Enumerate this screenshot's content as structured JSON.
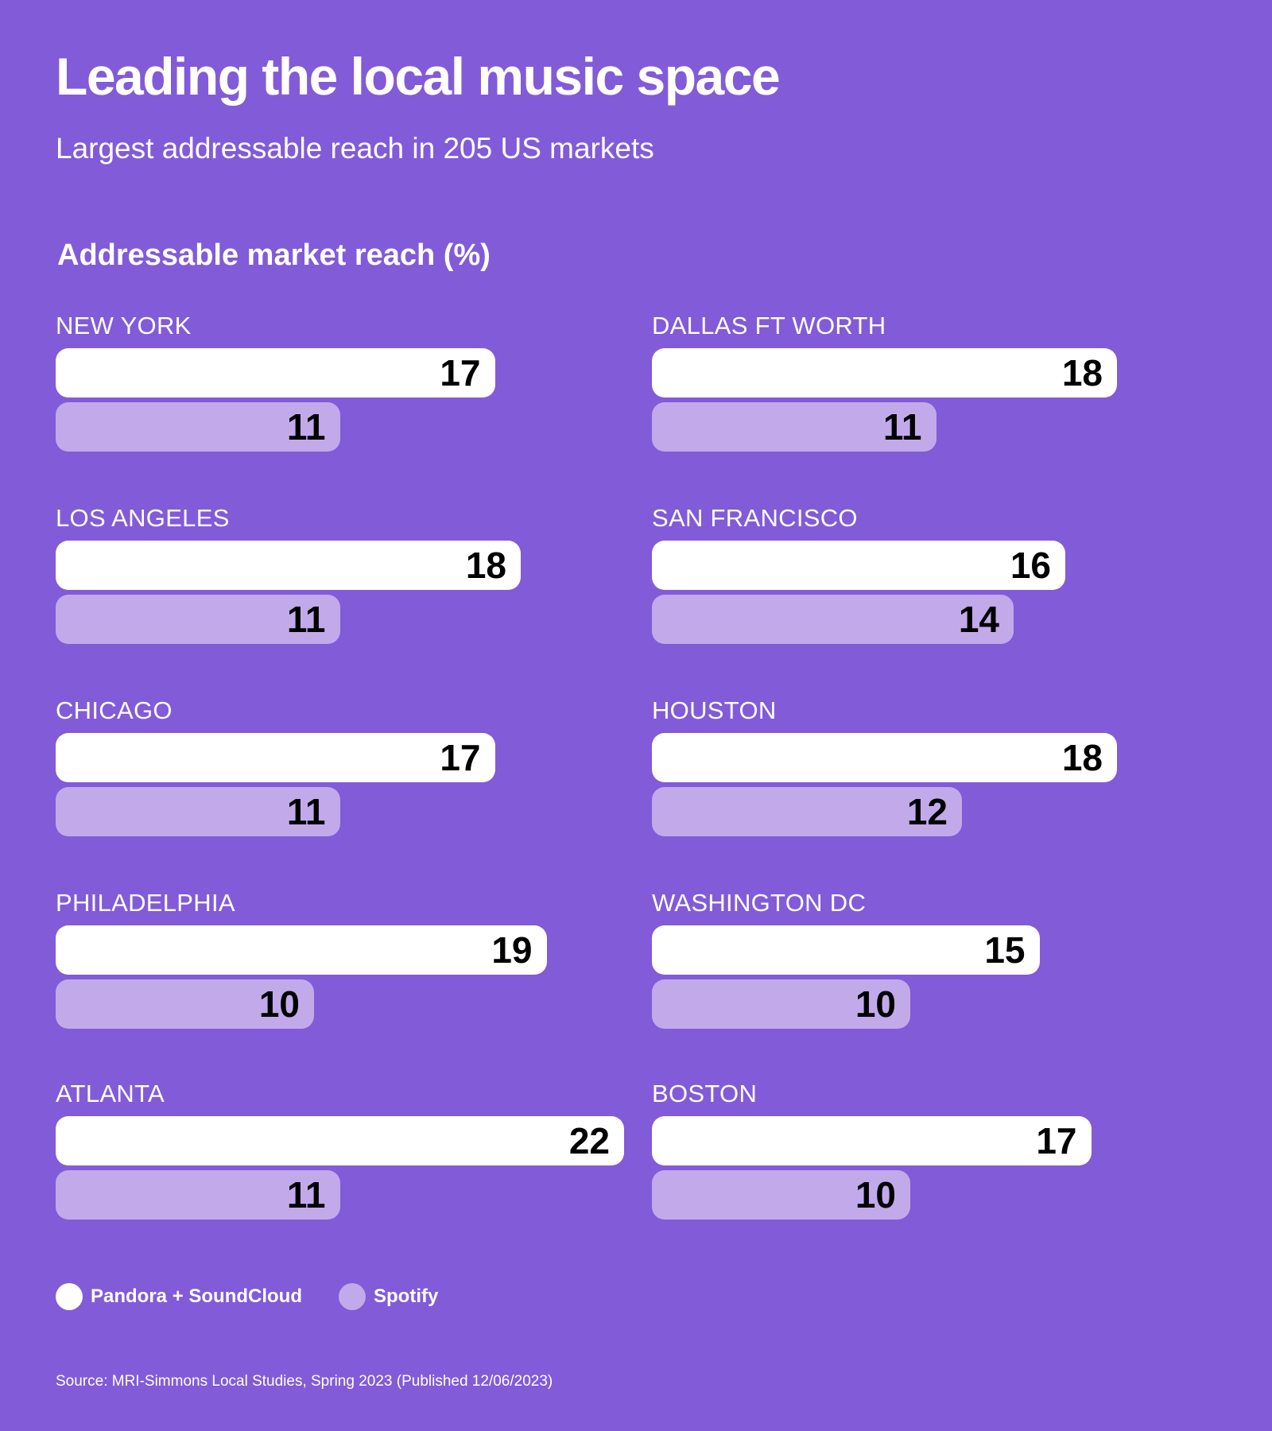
{
  "header": {
    "title": "Leading the local music space",
    "subtitle": "Largest addressable reach in 205 US markets"
  },
  "colors": {
    "background": "#825bd8",
    "pandora_soundcloud": "#ffffff",
    "spotify": "#c2aaea",
    "value_text": "#000000"
  },
  "chart_data": {
    "type": "bar",
    "orientation": "horizontal",
    "title": "Addressable market reach (%)",
    "series": [
      {
        "name": "Pandora + SoundCloud",
        "color": "#ffffff"
      },
      {
        "name": "Spotify",
        "color": "#c2aaea"
      }
    ],
    "markets": [
      {
        "name": "NEW YORK",
        "values": [
          17,
          11
        ]
      },
      {
        "name": "DALLAS FT WORTH",
        "values": [
          18,
          11
        ]
      },
      {
        "name": "LOS ANGELES",
        "values": [
          18,
          11
        ]
      },
      {
        "name": "SAN FRANCISCO",
        "values": [
          16,
          14
        ]
      },
      {
        "name": "CHICAGO",
        "values": [
          17,
          11
        ]
      },
      {
        "name": "HOUSTON",
        "values": [
          18,
          12
        ]
      },
      {
        "name": "PHILADELPHIA",
        "values": [
          19,
          10
        ]
      },
      {
        "name": "WASHINGTON DC",
        "values": [
          15,
          10
        ]
      },
      {
        "name": "ATLANTA",
        "values": [
          22,
          11
        ]
      },
      {
        "name": "BOSTON",
        "values": [
          17,
          10
        ]
      }
    ],
    "legend_position": "bottom-left"
  },
  "footer": {
    "source": "Source: MRI-Simmons Local Studies, Spring 2023 (Published 12/06/2023)"
  }
}
